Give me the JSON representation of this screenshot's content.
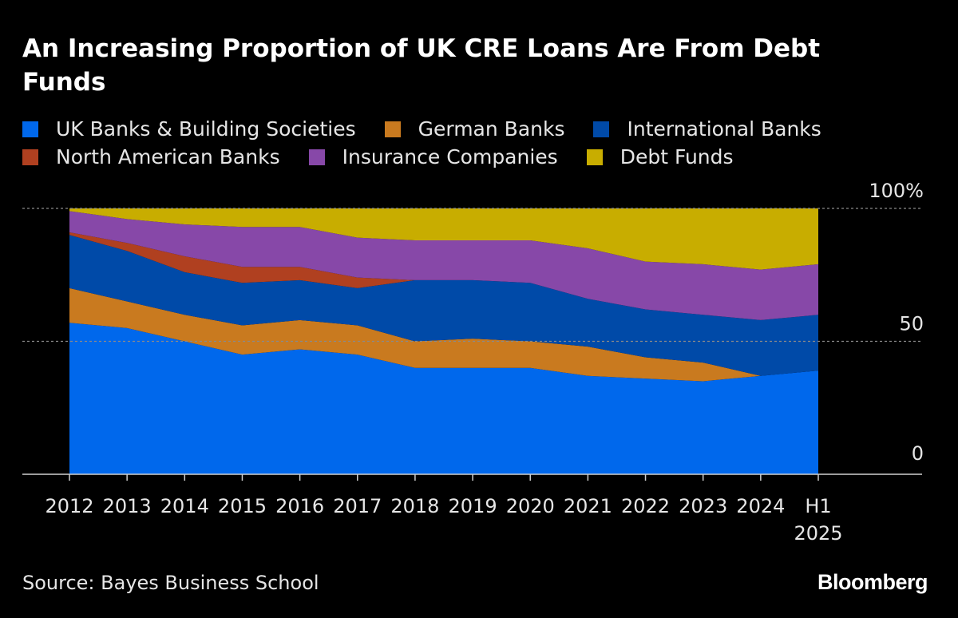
{
  "chart_data": {
    "type": "area",
    "stacked": true,
    "title": "An Increasing Proportion of UK CRE Loans Are From Debt Funds",
    "categories": [
      "2012",
      "2013",
      "2014",
      "2015",
      "2016",
      "2017",
      "2018",
      "2019",
      "2020",
      "2021",
      "2022",
      "2023",
      "2024",
      "H1 2025"
    ],
    "category_lines": [
      [
        "2012"
      ],
      [
        "2013"
      ],
      [
        "2014"
      ],
      [
        "2015"
      ],
      [
        "2016"
      ],
      [
        "2017"
      ],
      [
        "2018"
      ],
      [
        "2019"
      ],
      [
        "2020"
      ],
      [
        "2021"
      ],
      [
        "2022"
      ],
      [
        "2023"
      ],
      [
        "2024"
      ],
      [
        "H1",
        "2025"
      ]
    ],
    "series": [
      {
        "name": "UK Banks & Building Societies",
        "color": "#0068ec",
        "values": [
          57,
          55,
          50,
          45,
          47,
          45,
          40,
          40,
          40,
          37,
          36,
          35,
          37,
          39
        ]
      },
      {
        "name": "German Banks",
        "color": "#c97a1f",
        "values": [
          13,
          10,
          10,
          11,
          11,
          11,
          10,
          11,
          10,
          11,
          8,
          7,
          0,
          0
        ]
      },
      {
        "name": "International Banks",
        "color": "#004aa8",
        "values": [
          20,
          19,
          16,
          16,
          15,
          14,
          23,
          22,
          22,
          18,
          18,
          18,
          21,
          21
        ]
      },
      {
        "name": "North American Banks",
        "color": "#b04020",
        "values": [
          1,
          3,
          6,
          6,
          5,
          4,
          0,
          0,
          0,
          0,
          0,
          0,
          0,
          0
        ]
      },
      {
        "name": "Insurance Companies",
        "color": "#8748a8",
        "values": [
          8,
          9,
          12,
          15,
          15,
          15,
          15,
          15,
          16,
          19,
          18,
          19,
          19,
          19
        ]
      },
      {
        "name": "Debt Funds",
        "color": "#c8ad00",
        "values": [
          1,
          4,
          6,
          7,
          7,
          11,
          12,
          12,
          12,
          15,
          20,
          21,
          23,
          21
        ]
      }
    ],
    "ylim": [
      0,
      100
    ],
    "yticks": [
      {
        "value": 0,
        "label": "0"
      },
      {
        "value": 50,
        "label": "50"
      },
      {
        "value": 100,
        "label": "100%"
      }
    ],
    "xlabel": "",
    "ylabel": "",
    "grid": true,
    "legend_placement": "top-left",
    "source": "Source: Bayes Business School",
    "brand": "Bloomberg"
  }
}
